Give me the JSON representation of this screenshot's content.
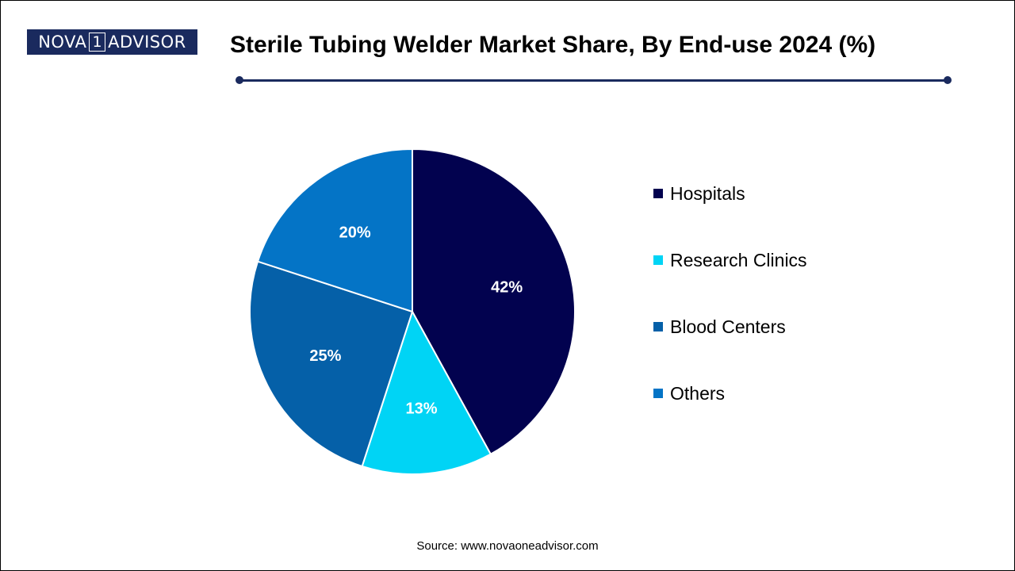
{
  "logo": {
    "left": "NOVA",
    "digit": "1",
    "right": "ADVISOR"
  },
  "chart_data": {
    "type": "pie",
    "title": "Sterile Tubing Welder Market Share, By End-use 2024 (%)",
    "categories": [
      "Hospitals",
      "Research Clinics",
      "Blood Centers",
      "Others"
    ],
    "values": [
      42,
      13,
      25,
      20
    ],
    "labels": [
      "42%",
      "13%",
      "25%",
      "20%"
    ],
    "colors": [
      "#02024f",
      "#00d4f5",
      "#0560a8",
      "#0474c6"
    ],
    "start_angle_deg": 0,
    "direction": "clockwise",
    "legend_position": "right"
  },
  "source": "Source: www.novaoneadvisor.com",
  "colors": {
    "brand": "#1a2a5e"
  }
}
